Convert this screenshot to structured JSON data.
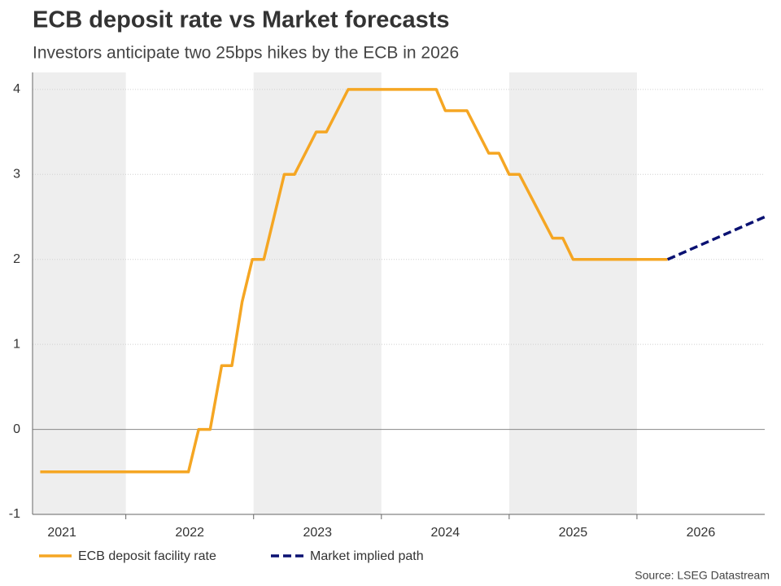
{
  "chart_data": {
    "type": "line",
    "title": "ECB deposit rate vs Market forecasts",
    "subtitle": "Investors anticipate two 25bps hikes by the ECB in 2026",
    "source": "Source: LSEG Datastream",
    "xlim": [
      2021.27,
      2027.0
    ],
    "xticks": [
      {
        "value": 2021.5,
        "label": "2021"
      },
      {
        "value": 2022.5,
        "label": "2022"
      },
      {
        "value": 2023.5,
        "label": "2023"
      },
      {
        "value": 2024.5,
        "label": "2024"
      },
      {
        "value": 2025.5,
        "label": "2025"
      },
      {
        "value": 2026.5,
        "label": "2026"
      }
    ],
    "ylim": [
      -1,
      4.2
    ],
    "yticks": [
      -1,
      0,
      1,
      2,
      3,
      4
    ],
    "grid": true,
    "legend": "bottom-left",
    "series": [
      {
        "name": "ECB deposit facility rate",
        "color": "#f5a623",
        "dash": false,
        "x": [
          2021.33,
          2022.49,
          2022.57,
          2022.66,
          2022.75,
          2022.83,
          2022.91,
          2022.99,
          2023.08,
          2023.16,
          2023.24,
          2023.32,
          2023.49,
          2023.57,
          2023.74,
          2024.43,
          2024.5,
          2024.67,
          2024.84,
          2024.92,
          2025.0,
          2025.08,
          2025.34,
          2025.42,
          2025.5,
          2026.24
        ],
        "values": [
          -0.5,
          -0.5,
          0,
          0,
          0.75,
          0.75,
          1.5,
          2,
          2,
          2.5,
          3,
          3,
          3.5,
          3.5,
          4,
          4,
          3.75,
          3.75,
          3.25,
          3.25,
          3,
          3,
          2.25,
          2.25,
          2,
          2
        ]
      },
      {
        "name": "Market implied path",
        "color": "#0a1172",
        "dash": true,
        "x": [
          2026.24,
          2027.0
        ],
        "values": [
          2,
          2.5
        ]
      }
    ]
  }
}
